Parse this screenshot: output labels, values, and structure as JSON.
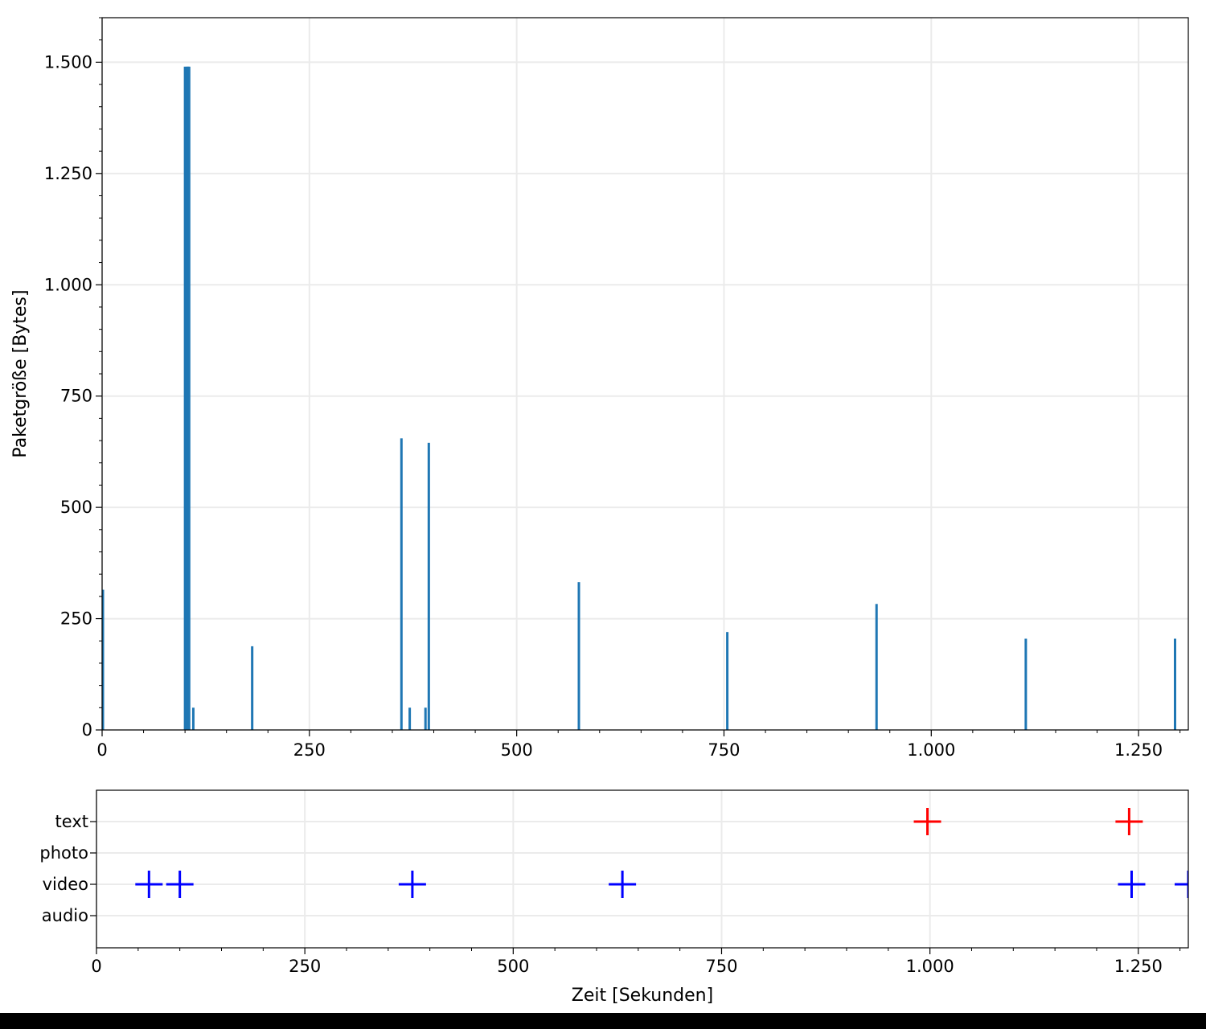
{
  "chart_data": [
    {
      "type": "bar",
      "title": "",
      "xlabel": "",
      "ylabel": "Paketgröße [Bytes]",
      "xlim": [
        0,
        1310
      ],
      "ylim": [
        0,
        1600
      ],
      "x_ticks": [
        0,
        250,
        500,
        750,
        1000,
        1250
      ],
      "x_tick_labels": [
        "0",
        "250",
        "500",
        "750",
        "1.000",
        "1.250"
      ],
      "y_ticks": [
        0,
        250,
        500,
        750,
        1000,
        1250,
        1500
      ],
      "y_tick_labels": [
        "0",
        "250",
        "500",
        "750",
        "1.000",
        "1.250",
        "1.500"
      ],
      "grid": true,
      "color": "#1f77b4",
      "x": [
        1,
        100,
        102,
        103,
        104,
        105,
        110,
        181,
        361,
        371,
        390,
        394,
        575,
        754,
        934,
        1114,
        1294
      ],
      "values": [
        315,
        1490,
        1490,
        1490,
        1490,
        1490,
        50,
        188,
        655,
        50,
        50,
        645,
        332,
        220,
        283,
        205,
        205
      ]
    },
    {
      "type": "scatter",
      "title": "",
      "xlabel": "Zeit [Sekunden]",
      "ylabel": "",
      "xlim": [
        0,
        1310
      ],
      "categories": [
        "audio",
        "video",
        "photo",
        "text"
      ],
      "x_ticks": [
        0,
        250,
        500,
        750,
        1000,
        1250
      ],
      "x_tick_labels": [
        "0",
        "250",
        "500",
        "750",
        "1.000",
        "1.250"
      ],
      "grid": true,
      "marker": "plus",
      "series": [
        {
          "color": "#0000ff",
          "category": "video",
          "x": [
            63,
            100,
            379,
            631,
            1242,
            1310
          ]
        },
        {
          "color": "#ff0000",
          "category": "text",
          "x": [
            997,
            1239
          ]
        }
      ]
    }
  ]
}
